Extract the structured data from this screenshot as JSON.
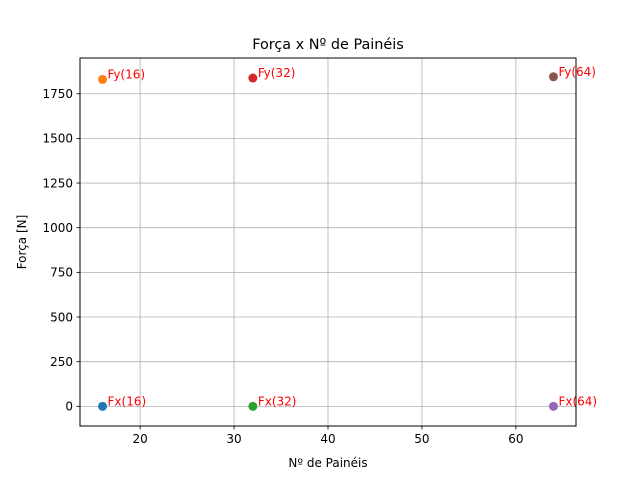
{
  "chart_data": {
    "type": "scatter",
    "title": "Força x Nº de Painéis",
    "xlabel": "Nº de Painéis",
    "ylabel": "Força [N]",
    "xlim": [
      13.6,
      66.4
    ],
    "ylim": [
      -110,
      1950
    ],
    "xticks": [
      20,
      30,
      40,
      50,
      60
    ],
    "yticks": [
      0,
      250,
      500,
      750,
      1000,
      1250,
      1500,
      1750
    ],
    "grid": true,
    "points": [
      {
        "label": "Fx(16)",
        "x": 16,
        "y": 0,
        "color": "#1f77b4"
      },
      {
        "label": "Fy(16)",
        "x": 16,
        "y": 1830,
        "color": "#ff7f0e"
      },
      {
        "label": "Fx(32)",
        "x": 32,
        "y": 0,
        "color": "#2ca02c"
      },
      {
        "label": "Fy(32)",
        "x": 32,
        "y": 1838,
        "color": "#d62728"
      },
      {
        "label": "Fx(64)",
        "x": 64,
        "y": 0,
        "color": "#9467bd"
      },
      {
        "label": "Fy(64)",
        "x": 64,
        "y": 1845,
        "color": "#8c564b"
      }
    ],
    "annotation_color": "#ff0000"
  }
}
